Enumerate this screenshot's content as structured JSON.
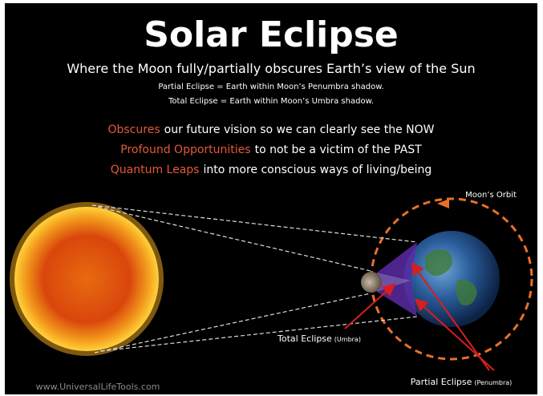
{
  "title": "Solar Eclipse",
  "subtitle": "Where the Moon fully/partially obscures Earth’s view of the Sun",
  "notes": [
    "Partial Eclipse = Earth within Moon’s Penumbra shadow.",
    "Total Eclipse = Earth within Moon’s Umbra shadow."
  ],
  "points": [
    {
      "highlight": "Obscures",
      "text": "our future vision so we can clearly see the NOW"
    },
    {
      "highlight": "Profound Opportunities",
      "text": "to not be a victim of the PAST"
    },
    {
      "highlight": "Quantum Leaps",
      "text": "into more conscious ways of living/being"
    }
  ],
  "labels": {
    "orbit": "Moon’s Orbit",
    "total": "Total Eclipse",
    "total_note": "(Umbra)",
    "partial": "Partial Eclipse",
    "partial_note": "(Penumbra)"
  },
  "footer": "www.UniversalLifeTools.com"
}
